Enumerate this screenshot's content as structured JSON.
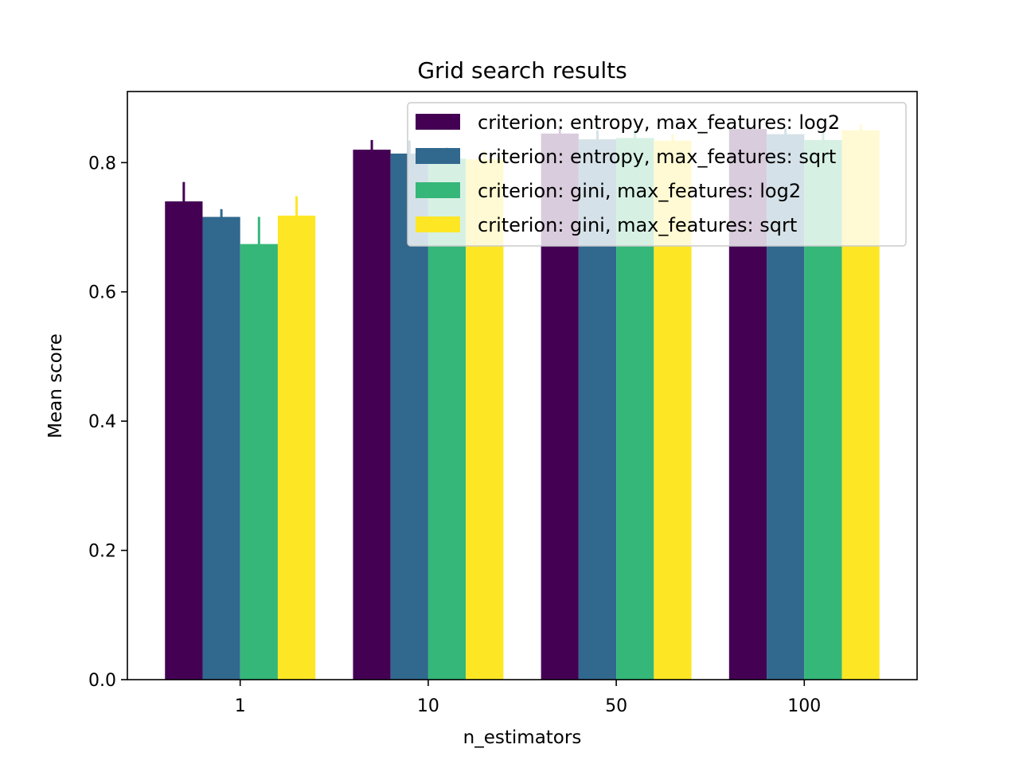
{
  "chart_data": {
    "type": "bar",
    "title": "Grid search results",
    "xlabel": "n_estimators",
    "ylabel": "Mean score",
    "categories": [
      "1",
      "10",
      "50",
      "100"
    ],
    "ylim": [
      0,
      0.91
    ],
    "yticks": [
      0.0,
      0.2,
      0.4,
      0.6,
      0.8
    ],
    "ytick_labels": [
      "0.0",
      "0.2",
      "0.4",
      "0.6",
      "0.8"
    ],
    "grid": false,
    "legend_position": "top-right",
    "series": [
      {
        "name": "criterion: entropy, max_features: log2",
        "color": "#440154",
        "values": [
          0.74,
          0.82,
          0.845,
          0.852
        ],
        "errors": [
          0.03,
          0.015,
          0.012,
          0.01
        ]
      },
      {
        "name": "criterion: entropy, max_features: sqrt",
        "color": "#31688e",
        "values": [
          0.716,
          0.814,
          0.836,
          0.844
        ],
        "errors": [
          0.012,
          0.02,
          0.014,
          0.009
        ]
      },
      {
        "name": "criterion: gini, max_features: log2",
        "color": "#35b779",
        "values": [
          0.674,
          0.806,
          0.838,
          0.835
        ],
        "errors": [
          0.042,
          0.018,
          0.013,
          0.011
        ]
      },
      {
        "name": "criterion: gini, max_features: sqrt",
        "color": "#fde725",
        "values": [
          0.718,
          0.805,
          0.834,
          0.85
        ],
        "errors": [
          0.03,
          0.014,
          0.01,
          0.009
        ]
      }
    ]
  }
}
